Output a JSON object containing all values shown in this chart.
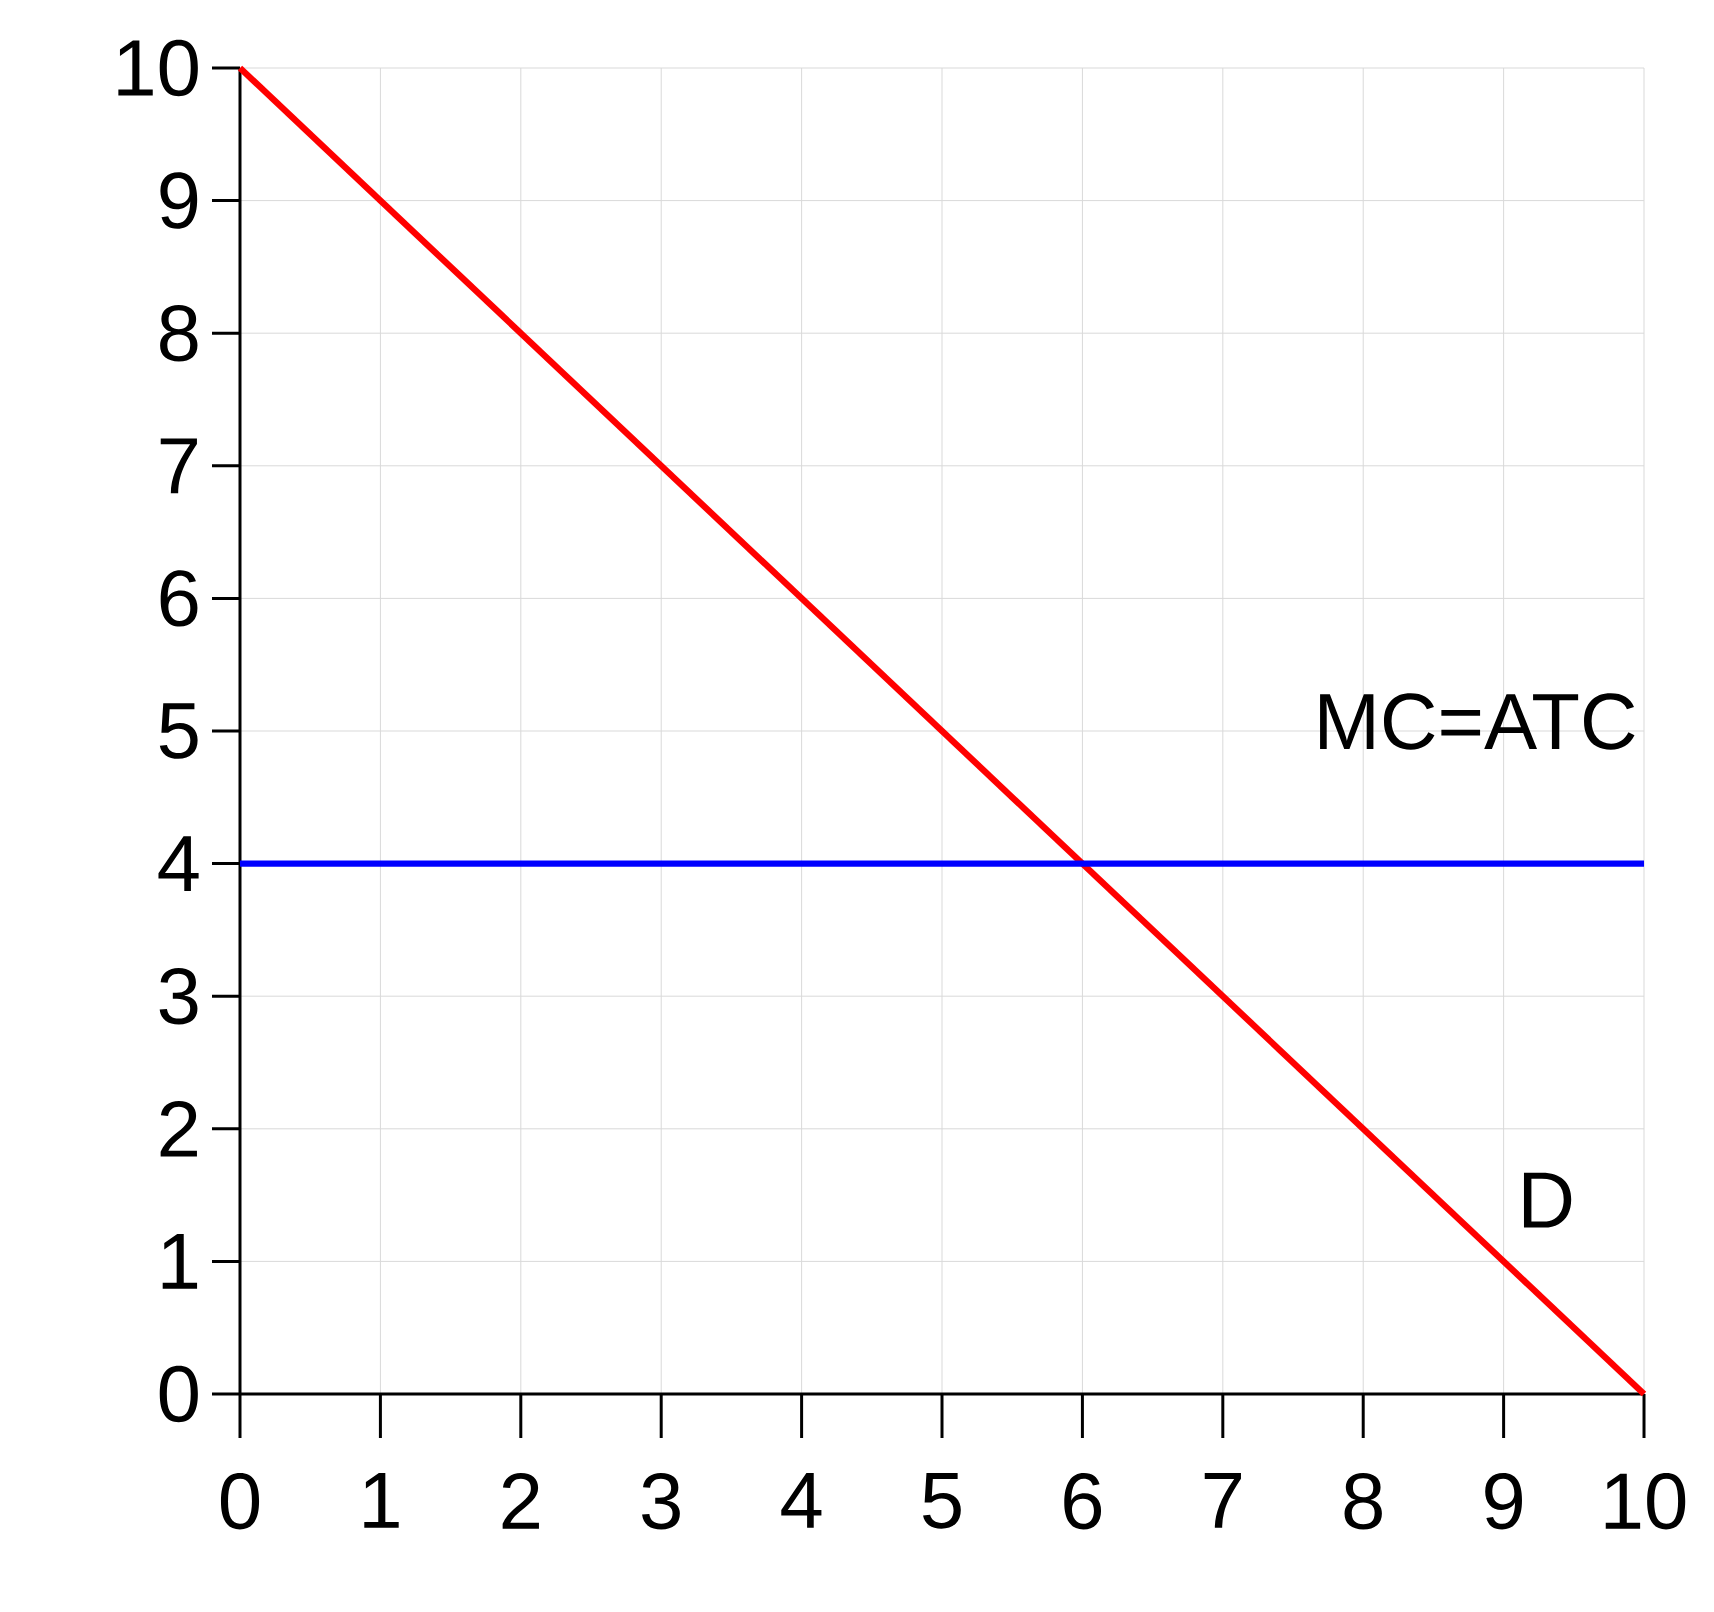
{
  "chart_data": {
    "type": "line",
    "x": [
      0,
      10
    ],
    "series": [
      {
        "name": "D",
        "color": "#ff0000",
        "values": [
          10,
          0
        ]
      },
      {
        "name": "MC=ATC",
        "color": "#0000ff",
        "values": [
          4,
          4
        ]
      }
    ],
    "xlim": [
      0,
      10
    ],
    "ylim": [
      0,
      10
    ],
    "xticks": [
      0,
      1,
      2,
      3,
      4,
      5,
      6,
      7,
      8,
      9,
      10
    ],
    "yticks": [
      0,
      1,
      2,
      3,
      4,
      5,
      6,
      7,
      8,
      9,
      10
    ],
    "grid": true,
    "legend": false,
    "marker": "none",
    "line_style": "solid"
  }
}
